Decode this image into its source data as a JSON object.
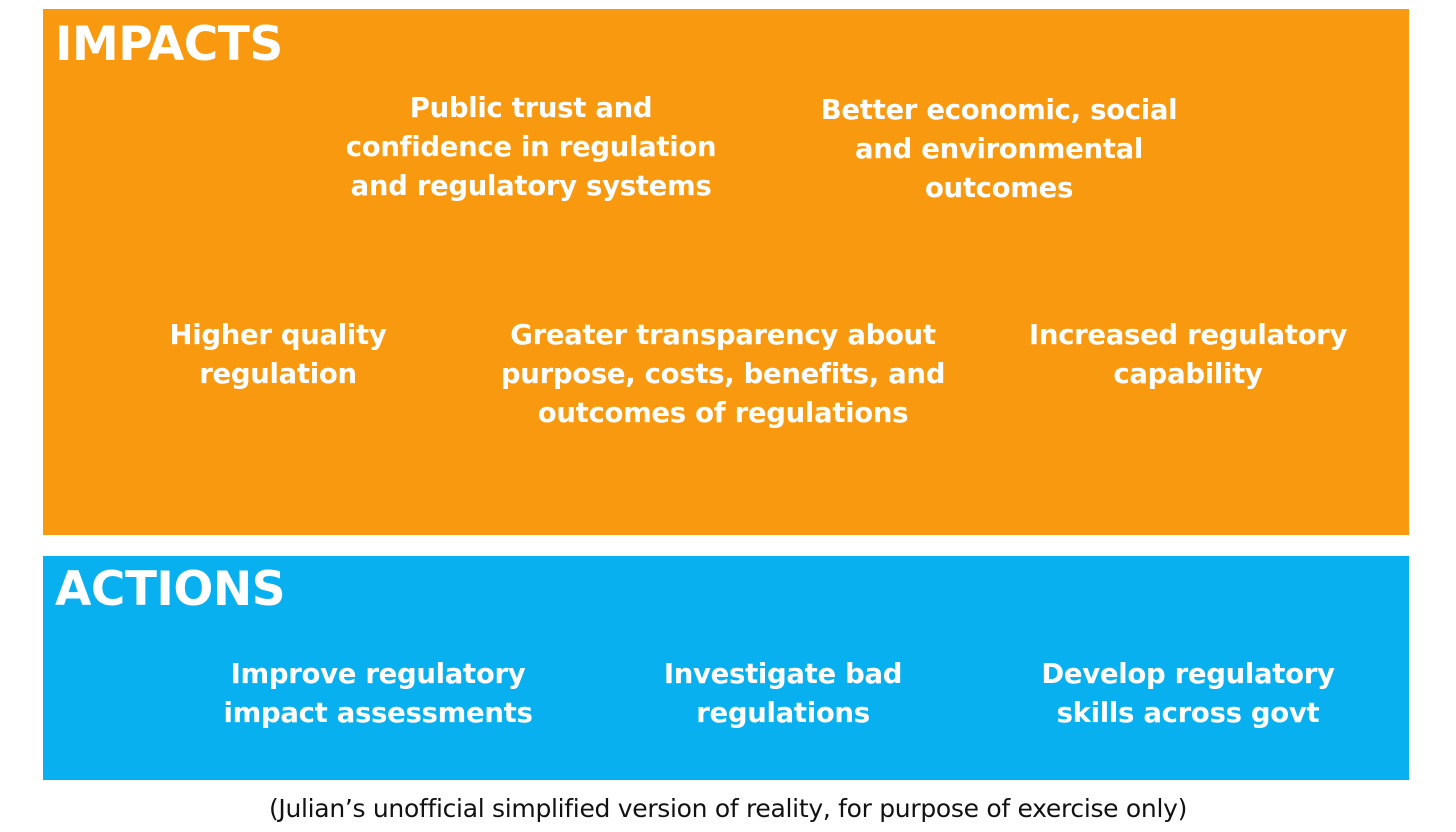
{
  "colors": {
    "impacts_background": "#f8990f",
    "actions_background": "#08b0ef",
    "text_on_panel": "#ffffff",
    "caption_text": "#111111"
  },
  "impacts": {
    "heading": "IMPACTS",
    "items": [
      {
        "lines": [
          "Public trust and",
          "confidence in regulation",
          "and regulatory systems"
        ]
      },
      {
        "lines": [
          "Better economic, social",
          "and environmental",
          "outcomes"
        ]
      },
      {
        "lines": [
          "Higher quality",
          "regulation"
        ]
      },
      {
        "lines": [
          "Greater transparency about",
          "purpose, costs, benefits, and",
          "outcomes of regulations"
        ]
      },
      {
        "lines": [
          "Increased regulatory",
          "capability"
        ]
      }
    ]
  },
  "actions": {
    "heading": "ACTIONS",
    "items": [
      {
        "lines": [
          "Improve regulatory",
          "impact assessments"
        ]
      },
      {
        "lines": [
          "Investigate bad",
          "regulations"
        ]
      },
      {
        "lines": [
          "Develop regulatory",
          "skills across govt"
        ]
      }
    ]
  },
  "caption": "(Julian’s unofficial simplified version of reality, for purpose of exercise only)"
}
